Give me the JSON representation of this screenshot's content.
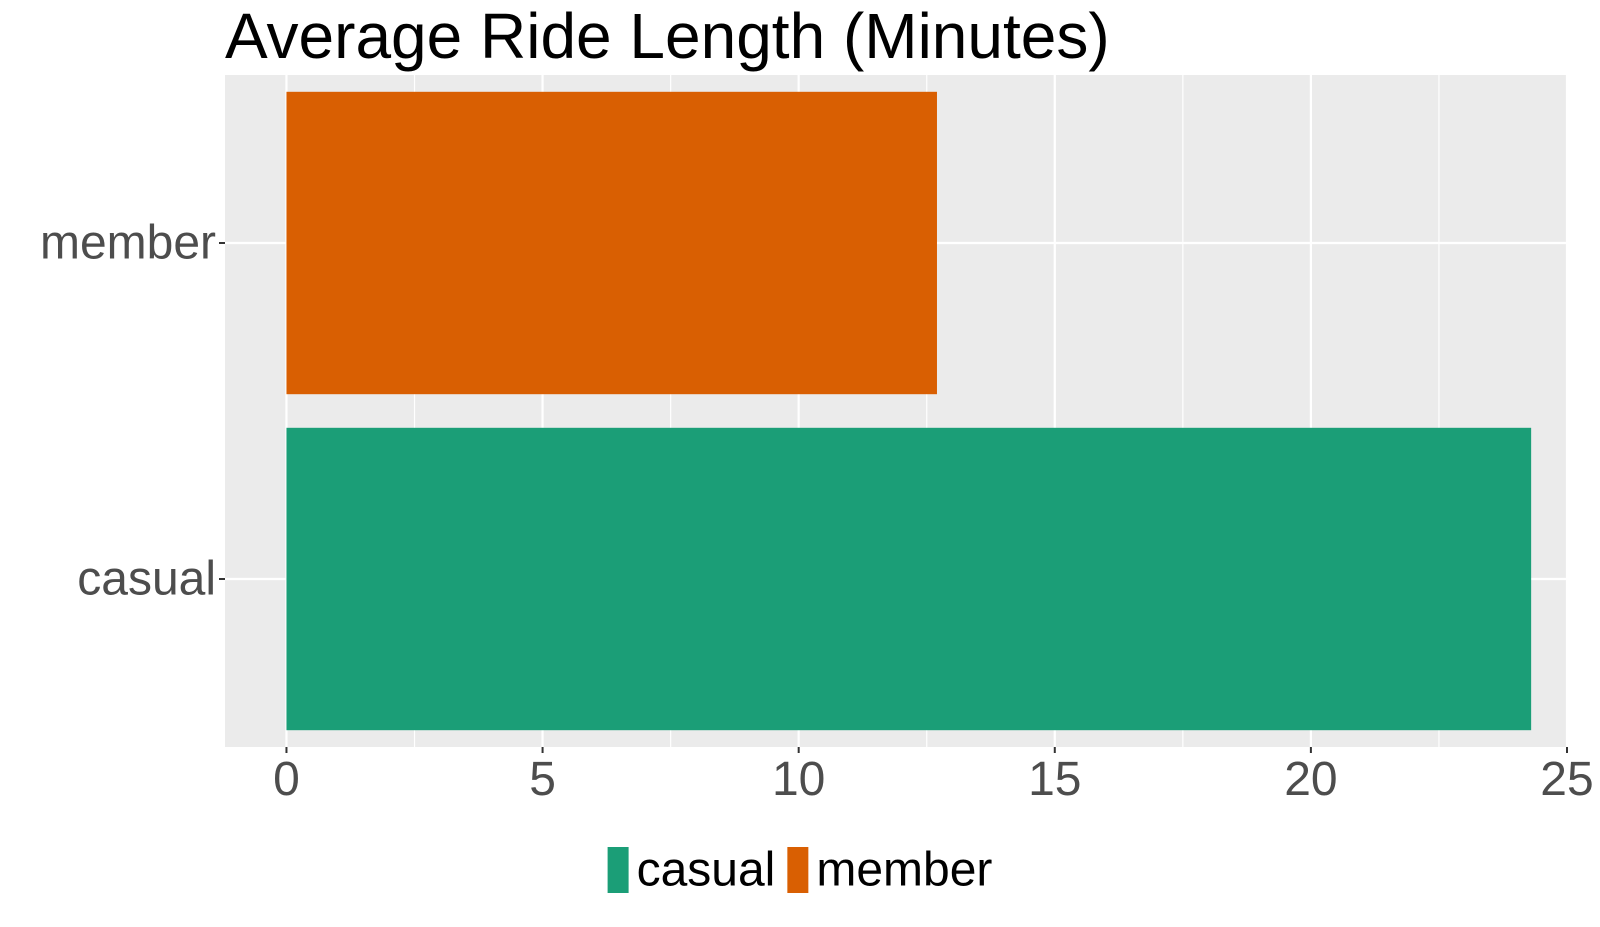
{
  "chart_data": {
    "type": "bar",
    "orientation": "horizontal",
    "title": "Average Ride Length (Minutes)",
    "xlabel": "",
    "ylabel": "",
    "categories": [
      "casual",
      "member"
    ],
    "values": [
      24.3,
      12.7
    ],
    "colors": [
      "#1b9e77",
      "#d95f02"
    ],
    "xlim": [
      -1.2,
      25
    ],
    "xticks": [
      0,
      5,
      10,
      15,
      20,
      25
    ],
    "grid": true,
    "panel_background": "#ebebeb",
    "legend": {
      "placement": "bottom",
      "entries": [
        {
          "label": "casual",
          "color": "#1b9e77"
        },
        {
          "label": "member",
          "color": "#d95f02"
        }
      ]
    }
  }
}
